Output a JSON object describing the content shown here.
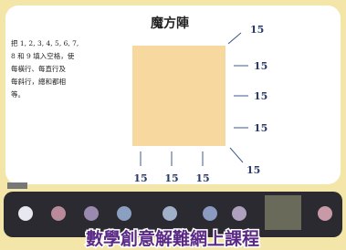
{
  "slide": {
    "title": "魔方陣",
    "instruction_lines": [
      "把 1, 2, 3, 4, 5, 6, 7,",
      "8 和 9 填入空格，使",
      "每橫行、每直行及",
      "每斜行，總和都相",
      "等。"
    ],
    "diagonal_sums": [
      "15",
      "15"
    ],
    "row_sums": [
      "15",
      "15",
      "15"
    ],
    "column_sums": [
      "15",
      "15",
      "15"
    ]
  },
  "banner": {
    "text": "數學創意解難網上課程"
  }
}
